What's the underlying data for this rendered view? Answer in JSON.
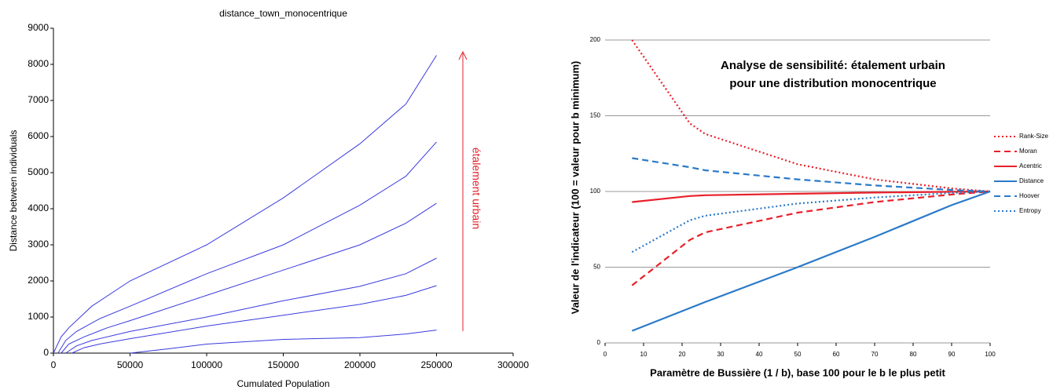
{
  "chart_data": [
    {
      "type": "line",
      "title": "distance_town_monocentrique",
      "x_label": "Cumulated Population",
      "y_label": "Distance between individuals",
      "annotation": "étalement urbain",
      "annotation_color": "#e0202a",
      "xlim": [
        0,
        300000
      ],
      "ylim": [
        0,
        9000
      ],
      "xticks": [
        0,
        50000,
        100000,
        150000,
        200000,
        250000,
        300000
      ],
      "yticks": [
        0,
        1000,
        2000,
        3000,
        4000,
        5000,
        6000,
        7000,
        8000,
        9000
      ],
      "series": [
        {
          "color": "#3a3ae0",
          "x": [
            0,
            5000,
            10000,
            25000,
            50000,
            100000,
            150000,
            200000,
            230000,
            250000
          ],
          "values": [
            0,
            450,
            700,
            1300,
            2000,
            3000,
            4300,
            5800,
            6900,
            8250
          ]
        },
        {
          "color": "#3a3ae0",
          "x": [
            3000,
            8000,
            15000,
            30000,
            50000,
            100000,
            150000,
            200000,
            230000,
            250000
          ],
          "values": [
            0,
            350,
            600,
            950,
            1300,
            2200,
            3000,
            4100,
            4900,
            5850
          ]
        },
        {
          "color": "#3a3ae0",
          "x": [
            5000,
            10000,
            20000,
            35000,
            50000,
            100000,
            150000,
            200000,
            230000,
            250000
          ],
          "values": [
            0,
            250,
            450,
            700,
            900,
            1600,
            2300,
            3000,
            3600,
            4150
          ]
        },
        {
          "color": "#3a3ae0",
          "x": [
            8000,
            15000,
            25000,
            50000,
            100000,
            150000,
            200000,
            230000,
            250000
          ],
          "values": [
            0,
            200,
            350,
            600,
            1000,
            1450,
            1850,
            2200,
            2630
          ]
        },
        {
          "color": "#3a3ae0",
          "x": [
            12000,
            20000,
            30000,
            50000,
            100000,
            150000,
            200000,
            230000,
            250000
          ],
          "values": [
            0,
            150,
            250,
            400,
            750,
            1050,
            1350,
            1600,
            1870
          ]
        },
        {
          "color": "#3a3ae0",
          "x": [
            50000,
            75000,
            100000,
            150000,
            200000,
            230000,
            250000
          ],
          "values": [
            0,
            120,
            250,
            380,
            430,
            530,
            640
          ]
        }
      ]
    },
    {
      "type": "line",
      "x_label": "Paramètre de Bussière (1 / b), base 100 pour le b le plus petit",
      "y_label": "Valeur de l'indicateur (100 = valeur pour b minimum)",
      "annotation": [
        "Analyse de sensibilité:  étalement urbain",
        "pour une distribution monocentrique"
      ],
      "xlim": [
        0,
        100
      ],
      "ylim": [
        0,
        200
      ],
      "xticks": [
        0,
        10,
        20,
        30,
        40,
        50,
        60,
        70,
        80,
        90,
        100
      ],
      "yticks": [
        0,
        50,
        100,
        150,
        200
      ],
      "grid": true,
      "legend": "right",
      "x": [
        7,
        22,
        26,
        50,
        70,
        90,
        100
      ],
      "series": [
        {
          "name": "Rank-Size",
          "color": "#e8202a",
          "dash": "dotted",
          "values": [
            200,
            145,
            138,
            118,
            108,
            102,
            100
          ]
        },
        {
          "name": "Moran",
          "color": "#e8202a",
          "dash": "dashed",
          "values": [
            38,
            68,
            73,
            86,
            93,
            98,
            100
          ]
        },
        {
          "name": "Acentric",
          "color": "#e8202a",
          "dash": "solid",
          "values": [
            93,
            97,
            97.5,
            98.5,
            99.3,
            99.8,
            100
          ]
        },
        {
          "name": "Distance",
          "color": "#2a7ac8",
          "dash": "solid",
          "values": [
            8,
            23,
            27,
            50,
            70,
            91,
            100
          ]
        },
        {
          "name": "Hoover",
          "color": "#2a7ac8",
          "dash": "dashed",
          "values": [
            122,
            116,
            114,
            108,
            104,
            101,
            100
          ]
        },
        {
          "name": "Entropy",
          "color": "#2a7ac8",
          "dash": "dotted",
          "values": [
            60,
            81,
            84,
            92,
            96,
            99,
            100
          ]
        }
      ]
    }
  ]
}
